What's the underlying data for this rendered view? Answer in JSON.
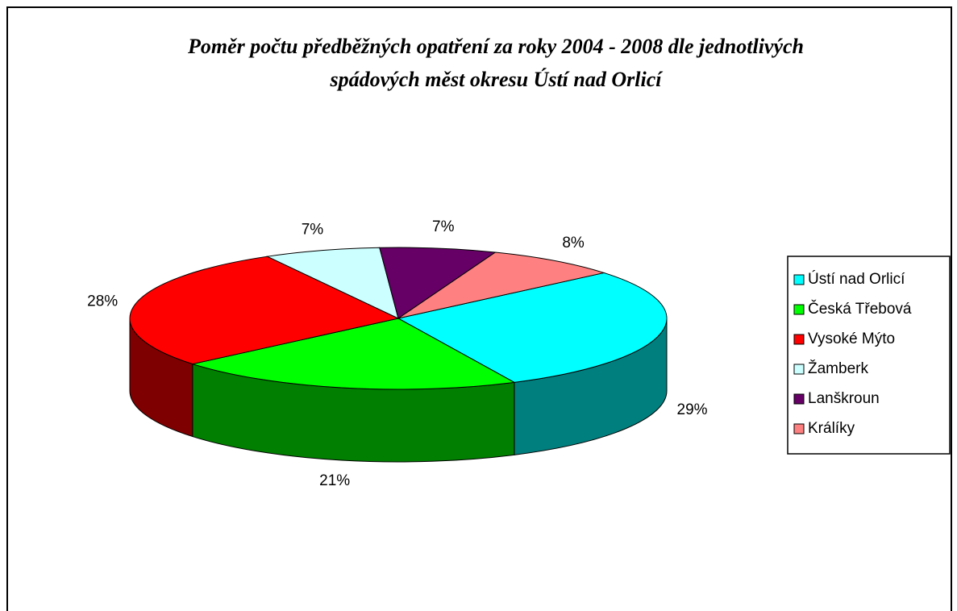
{
  "chart_data": {
    "type": "pie3d",
    "title": [
      "Poměr počtu předběžných opatření za roky 2004 - 2008 dle jednotlivých",
      "spádových měst okresu Ústí nad Orlicí"
    ],
    "categories": [
      "Ústí nad Orlicí",
      "Česká Třebová",
      "Vysoké Mýto",
      "Žamberk",
      "Lanškroun",
      "Králíky"
    ],
    "values": [
      29,
      21,
      28,
      7,
      7,
      8
    ],
    "value_labels": [
      "29%",
      "21%",
      "28%",
      "7%",
      "7%",
      "8%"
    ],
    "colors": [
      "#00ffff",
      "#00ff00",
      "#ff0000",
      "#ccffff",
      "#660066",
      "#ff8080"
    ],
    "legend": "right"
  }
}
